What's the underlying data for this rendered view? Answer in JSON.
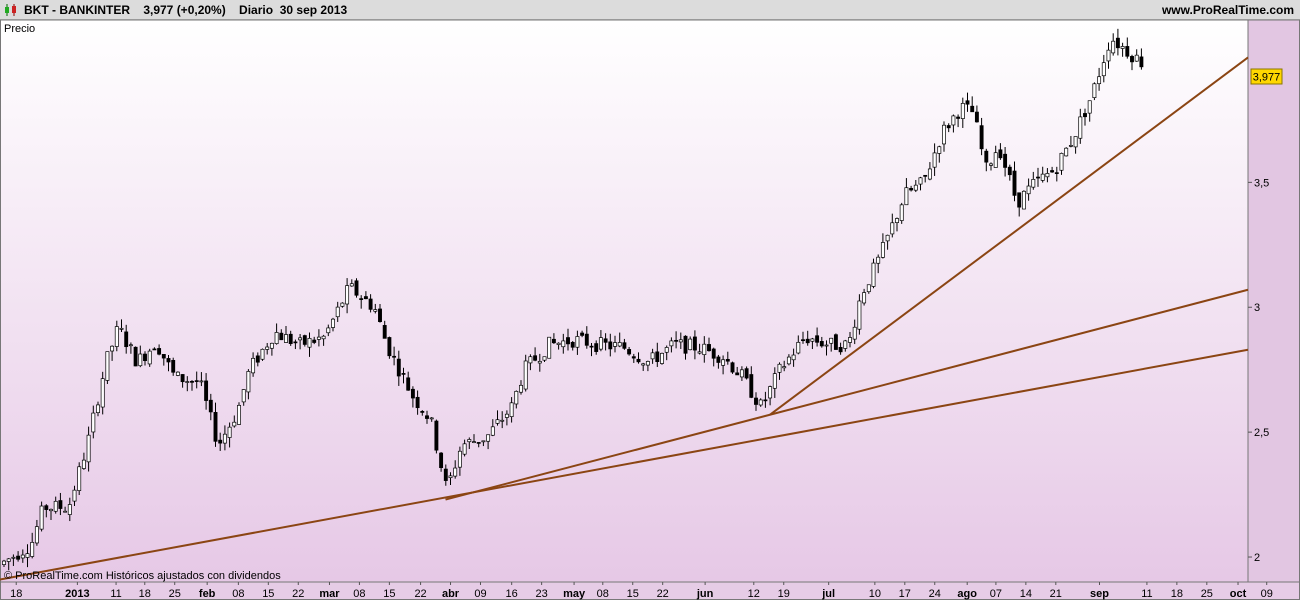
{
  "header": {
    "title": "BKT - BANKINTER    3,977 (+0,20%)    Diario  30 sep 2013",
    "site": "www.ProRealTime.com"
  },
  "panel_label": "Precio",
  "footer_note": "© ProRealTime.com  Históricos ajustados con dividendos",
  "last_price_label": "3,977",
  "colors": {
    "trendline": "#8b4513",
    "bull": "#ffffff",
    "bear": "#000000",
    "price_tag": "#ffd700"
  },
  "chart_data": {
    "type": "candlestick",
    "ylim": [
      1.9,
      4.15
    ],
    "y_ticks": [
      {
        "value": 2,
        "label": "2"
      },
      {
        "value": 2.5,
        "label": "2,5"
      },
      {
        "value": 3,
        "label": "3"
      },
      {
        "value": 3.5,
        "label": "3,5"
      }
    ],
    "x_ticks": [
      {
        "pos": 0.013,
        "label": "18",
        "bold": false
      },
      {
        "pos": 0.062,
        "label": "2013",
        "bold": true
      },
      {
        "pos": 0.093,
        "label": "11",
        "bold": false
      },
      {
        "pos": 0.116,
        "label": "18",
        "bold": false
      },
      {
        "pos": 0.14,
        "label": "25",
        "bold": false
      },
      {
        "pos": 0.166,
        "label": "feb",
        "bold": true
      },
      {
        "pos": 0.191,
        "label": "08",
        "bold": false
      },
      {
        "pos": 0.215,
        "label": "15",
        "bold": false
      },
      {
        "pos": 0.239,
        "label": "22",
        "bold": false
      },
      {
        "pos": 0.264,
        "label": "mar",
        "bold": true
      },
      {
        "pos": 0.288,
        "label": "08",
        "bold": false
      },
      {
        "pos": 0.312,
        "label": "15",
        "bold": false
      },
      {
        "pos": 0.337,
        "label": "22",
        "bold": false
      },
      {
        "pos": 0.361,
        "label": "abr",
        "bold": true
      },
      {
        "pos": 0.385,
        "label": "09",
        "bold": false
      },
      {
        "pos": 0.41,
        "label": "16",
        "bold": false
      },
      {
        "pos": 0.434,
        "label": "23",
        "bold": false
      },
      {
        "pos": 0.46,
        "label": "may",
        "bold": true
      },
      {
        "pos": 0.483,
        "label": "08",
        "bold": false
      },
      {
        "pos": 0.507,
        "label": "15",
        "bold": false
      },
      {
        "pos": 0.531,
        "label": "22",
        "bold": false
      },
      {
        "pos": 0.565,
        "label": "jun",
        "bold": true
      },
      {
        "pos": 0.604,
        "label": "12",
        "bold": false
      },
      {
        "pos": 0.628,
        "label": "19",
        "bold": false
      },
      {
        "pos": 0.664,
        "label": "jul",
        "bold": true
      },
      {
        "pos": 0.701,
        "label": "10",
        "bold": false
      },
      {
        "pos": 0.725,
        "label": "17",
        "bold": false
      },
      {
        "pos": 0.749,
        "label": "24",
        "bold": false
      },
      {
        "pos": 0.775,
        "label": "ago",
        "bold": true
      },
      {
        "pos": 0.798,
        "label": "07",
        "bold": false
      },
      {
        "pos": 0.822,
        "label": "14",
        "bold": false
      },
      {
        "pos": 0.846,
        "label": "21",
        "bold": false
      },
      {
        "pos": 0.881,
        "label": "sep",
        "bold": true
      },
      {
        "pos": 0.919,
        "label": "11",
        "bold": false
      },
      {
        "pos": 0.943,
        "label": "18",
        "bold": false
      },
      {
        "pos": 0.967,
        "label": "25",
        "bold": false
      },
      {
        "pos": 0.992,
        "label": "oct",
        "bold": true
      },
      {
        "pos": 1.015,
        "label": "09",
        "bold": false
      }
    ],
    "trendlines": [
      {
        "x1": 0.0,
        "y1": 1.91,
        "x2": 1.0,
        "y2": 2.83
      },
      {
        "x1": 0.357,
        "y1": 2.23,
        "x2": 1.0,
        "y2": 3.07
      },
      {
        "x1": 0.617,
        "y1": 2.57,
        "x2": 1.0,
        "y2": 4.0
      }
    ],
    "price_waypoints": [
      {
        "x": 0.0,
        "y": 1.97
      },
      {
        "x": 0.025,
        "y": 2.05
      },
      {
        "x": 0.035,
        "y": 2.2
      },
      {
        "x": 0.055,
        "y": 2.2
      },
      {
        "x": 0.07,
        "y": 2.45
      },
      {
        "x": 0.085,
        "y": 2.78
      },
      {
        "x": 0.095,
        "y": 2.92
      },
      {
        "x": 0.11,
        "y": 2.78
      },
      {
        "x": 0.125,
        "y": 2.86
      },
      {
        "x": 0.14,
        "y": 2.72
      },
      {
        "x": 0.16,
        "y": 2.7
      },
      {
        "x": 0.175,
        "y": 2.45
      },
      {
        "x": 0.19,
        "y": 2.58
      },
      {
        "x": 0.2,
        "y": 2.75
      },
      {
        "x": 0.22,
        "y": 2.9
      },
      {
        "x": 0.24,
        "y": 2.85
      },
      {
        "x": 0.26,
        "y": 2.88
      },
      {
        "x": 0.28,
        "y": 3.08
      },
      {
        "x": 0.3,
        "y": 3.0
      },
      {
        "x": 0.31,
        "y": 2.85
      },
      {
        "x": 0.33,
        "y": 2.65
      },
      {
        "x": 0.345,
        "y": 2.55
      },
      {
        "x": 0.358,
        "y": 2.27
      },
      {
        "x": 0.37,
        "y": 2.45
      },
      {
        "x": 0.39,
        "y": 2.48
      },
      {
        "x": 0.41,
        "y": 2.6
      },
      {
        "x": 0.42,
        "y": 2.75
      },
      {
        "x": 0.44,
        "y": 2.85
      },
      {
        "x": 0.46,
        "y": 2.87
      },
      {
        "x": 0.48,
        "y": 2.85
      },
      {
        "x": 0.5,
        "y": 2.84
      },
      {
        "x": 0.52,
        "y": 2.78
      },
      {
        "x": 0.54,
        "y": 2.85
      },
      {
        "x": 0.56,
        "y": 2.84
      },
      {
        "x": 0.58,
        "y": 2.8
      },
      {
        "x": 0.595,
        "y": 2.72
      },
      {
        "x": 0.61,
        "y": 2.6
      },
      {
        "x": 0.625,
        "y": 2.75
      },
      {
        "x": 0.645,
        "y": 2.88
      },
      {
        "x": 0.665,
        "y": 2.85
      },
      {
        "x": 0.68,
        "y": 2.85
      },
      {
        "x": 0.69,
        "y": 3.05
      },
      {
        "x": 0.705,
        "y": 3.2
      },
      {
        "x": 0.725,
        "y": 3.45
      },
      {
        "x": 0.74,
        "y": 3.5
      },
      {
        "x": 0.755,
        "y": 3.7
      },
      {
        "x": 0.77,
        "y": 3.8
      },
      {
        "x": 0.78,
        "y": 3.78
      },
      {
        "x": 0.79,
        "y": 3.55
      },
      {
        "x": 0.8,
        "y": 3.65
      },
      {
        "x": 0.815,
        "y": 3.42
      },
      {
        "x": 0.83,
        "y": 3.5
      },
      {
        "x": 0.845,
        "y": 3.55
      },
      {
        "x": 0.86,
        "y": 3.68
      },
      {
        "x": 0.875,
        "y": 3.85
      },
      {
        "x": 0.89,
        "y": 4.08
      },
      {
        "x": 0.905,
        "y": 4.02
      },
      {
        "x": 0.915,
        "y": 3.98
      }
    ]
  }
}
